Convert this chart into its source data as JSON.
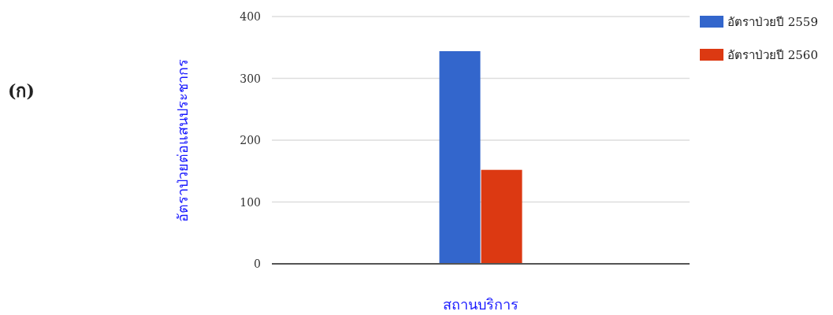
{
  "chart_data": {
    "type": "bar",
    "title": "(ก)",
    "xlabel": "สถานบริการ",
    "ylabel": "อัตราป่วยต่อแสนประชากร",
    "categories": [
      null
    ],
    "series": [
      {
        "name": "อัตราป่วยปี 2559",
        "color": "#3366cc",
        "values": [
          344
        ]
      },
      {
        "name": "อัตราป่วยปี 2560",
        "color": "#dc3912",
        "values": [
          152
        ]
      }
    ],
    "ylim": [
      0,
      400
    ],
    "yticks": [
      0,
      100,
      200,
      300,
      400
    ],
    "grid": "y",
    "legend": "top right"
  }
}
